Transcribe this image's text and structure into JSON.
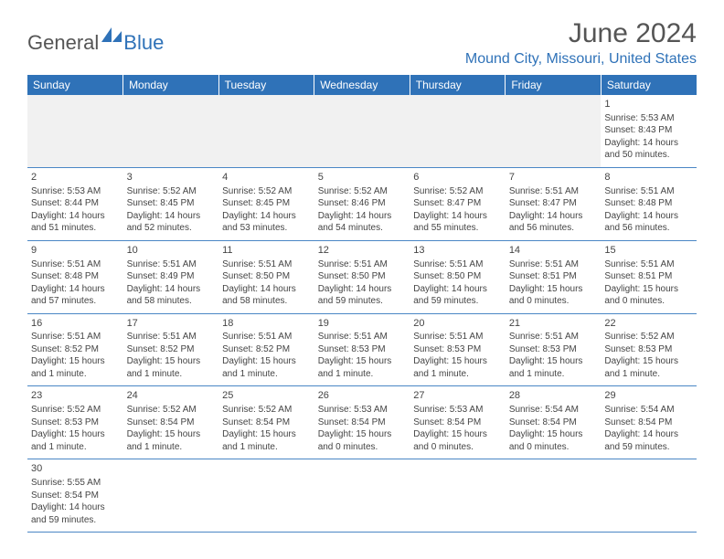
{
  "brand": {
    "part1": "General",
    "part2": "Blue"
  },
  "title": "June 2024",
  "location": "Mound City, Missouri, United States",
  "weekdays": [
    "Sunday",
    "Monday",
    "Tuesday",
    "Wednesday",
    "Thursday",
    "Friday",
    "Saturday"
  ],
  "colors": {
    "header_bg": "#2f72b8",
    "header_text": "#ffffff",
    "divider": "#4a86c5",
    "body_text": "#444444",
    "title_text": "#555555",
    "location_text": "#2f72b8"
  },
  "weeks": [
    [
      null,
      null,
      null,
      null,
      null,
      null,
      {
        "n": "1",
        "sunrise": "Sunrise: 5:53 AM",
        "sunset": "Sunset: 8:43 PM",
        "daylight": "Daylight: 14 hours and 50 minutes."
      }
    ],
    [
      {
        "n": "2",
        "sunrise": "Sunrise: 5:53 AM",
        "sunset": "Sunset: 8:44 PM",
        "daylight": "Daylight: 14 hours and 51 minutes."
      },
      {
        "n": "3",
        "sunrise": "Sunrise: 5:52 AM",
        "sunset": "Sunset: 8:45 PM",
        "daylight": "Daylight: 14 hours and 52 minutes."
      },
      {
        "n": "4",
        "sunrise": "Sunrise: 5:52 AM",
        "sunset": "Sunset: 8:45 PM",
        "daylight": "Daylight: 14 hours and 53 minutes."
      },
      {
        "n": "5",
        "sunrise": "Sunrise: 5:52 AM",
        "sunset": "Sunset: 8:46 PM",
        "daylight": "Daylight: 14 hours and 54 minutes."
      },
      {
        "n": "6",
        "sunrise": "Sunrise: 5:52 AM",
        "sunset": "Sunset: 8:47 PM",
        "daylight": "Daylight: 14 hours and 55 minutes."
      },
      {
        "n": "7",
        "sunrise": "Sunrise: 5:51 AM",
        "sunset": "Sunset: 8:47 PM",
        "daylight": "Daylight: 14 hours and 56 minutes."
      },
      {
        "n": "8",
        "sunrise": "Sunrise: 5:51 AM",
        "sunset": "Sunset: 8:48 PM",
        "daylight": "Daylight: 14 hours and 56 minutes."
      }
    ],
    [
      {
        "n": "9",
        "sunrise": "Sunrise: 5:51 AM",
        "sunset": "Sunset: 8:48 PM",
        "daylight": "Daylight: 14 hours and 57 minutes."
      },
      {
        "n": "10",
        "sunrise": "Sunrise: 5:51 AM",
        "sunset": "Sunset: 8:49 PM",
        "daylight": "Daylight: 14 hours and 58 minutes."
      },
      {
        "n": "11",
        "sunrise": "Sunrise: 5:51 AM",
        "sunset": "Sunset: 8:50 PM",
        "daylight": "Daylight: 14 hours and 58 minutes."
      },
      {
        "n": "12",
        "sunrise": "Sunrise: 5:51 AM",
        "sunset": "Sunset: 8:50 PM",
        "daylight": "Daylight: 14 hours and 59 minutes."
      },
      {
        "n": "13",
        "sunrise": "Sunrise: 5:51 AM",
        "sunset": "Sunset: 8:50 PM",
        "daylight": "Daylight: 14 hours and 59 minutes."
      },
      {
        "n": "14",
        "sunrise": "Sunrise: 5:51 AM",
        "sunset": "Sunset: 8:51 PM",
        "daylight": "Daylight: 15 hours and 0 minutes."
      },
      {
        "n": "15",
        "sunrise": "Sunrise: 5:51 AM",
        "sunset": "Sunset: 8:51 PM",
        "daylight": "Daylight: 15 hours and 0 minutes."
      }
    ],
    [
      {
        "n": "16",
        "sunrise": "Sunrise: 5:51 AM",
        "sunset": "Sunset: 8:52 PM",
        "daylight": "Daylight: 15 hours and 1 minute."
      },
      {
        "n": "17",
        "sunrise": "Sunrise: 5:51 AM",
        "sunset": "Sunset: 8:52 PM",
        "daylight": "Daylight: 15 hours and 1 minute."
      },
      {
        "n": "18",
        "sunrise": "Sunrise: 5:51 AM",
        "sunset": "Sunset: 8:52 PM",
        "daylight": "Daylight: 15 hours and 1 minute."
      },
      {
        "n": "19",
        "sunrise": "Sunrise: 5:51 AM",
        "sunset": "Sunset: 8:53 PM",
        "daylight": "Daylight: 15 hours and 1 minute."
      },
      {
        "n": "20",
        "sunrise": "Sunrise: 5:51 AM",
        "sunset": "Sunset: 8:53 PM",
        "daylight": "Daylight: 15 hours and 1 minute."
      },
      {
        "n": "21",
        "sunrise": "Sunrise: 5:51 AM",
        "sunset": "Sunset: 8:53 PM",
        "daylight": "Daylight: 15 hours and 1 minute."
      },
      {
        "n": "22",
        "sunrise": "Sunrise: 5:52 AM",
        "sunset": "Sunset: 8:53 PM",
        "daylight": "Daylight: 15 hours and 1 minute."
      }
    ],
    [
      {
        "n": "23",
        "sunrise": "Sunrise: 5:52 AM",
        "sunset": "Sunset: 8:53 PM",
        "daylight": "Daylight: 15 hours and 1 minute."
      },
      {
        "n": "24",
        "sunrise": "Sunrise: 5:52 AM",
        "sunset": "Sunset: 8:54 PM",
        "daylight": "Daylight: 15 hours and 1 minute."
      },
      {
        "n": "25",
        "sunrise": "Sunrise: 5:52 AM",
        "sunset": "Sunset: 8:54 PM",
        "daylight": "Daylight: 15 hours and 1 minute."
      },
      {
        "n": "26",
        "sunrise": "Sunrise: 5:53 AM",
        "sunset": "Sunset: 8:54 PM",
        "daylight": "Daylight: 15 hours and 0 minutes."
      },
      {
        "n": "27",
        "sunrise": "Sunrise: 5:53 AM",
        "sunset": "Sunset: 8:54 PM",
        "daylight": "Daylight: 15 hours and 0 minutes."
      },
      {
        "n": "28",
        "sunrise": "Sunrise: 5:54 AM",
        "sunset": "Sunset: 8:54 PM",
        "daylight": "Daylight: 15 hours and 0 minutes."
      },
      {
        "n": "29",
        "sunrise": "Sunrise: 5:54 AM",
        "sunset": "Sunset: 8:54 PM",
        "daylight": "Daylight: 14 hours and 59 minutes."
      }
    ],
    [
      {
        "n": "30",
        "sunrise": "Sunrise: 5:55 AM",
        "sunset": "Sunset: 8:54 PM",
        "daylight": "Daylight: 14 hours and 59 minutes."
      },
      null,
      null,
      null,
      null,
      null,
      null
    ]
  ]
}
